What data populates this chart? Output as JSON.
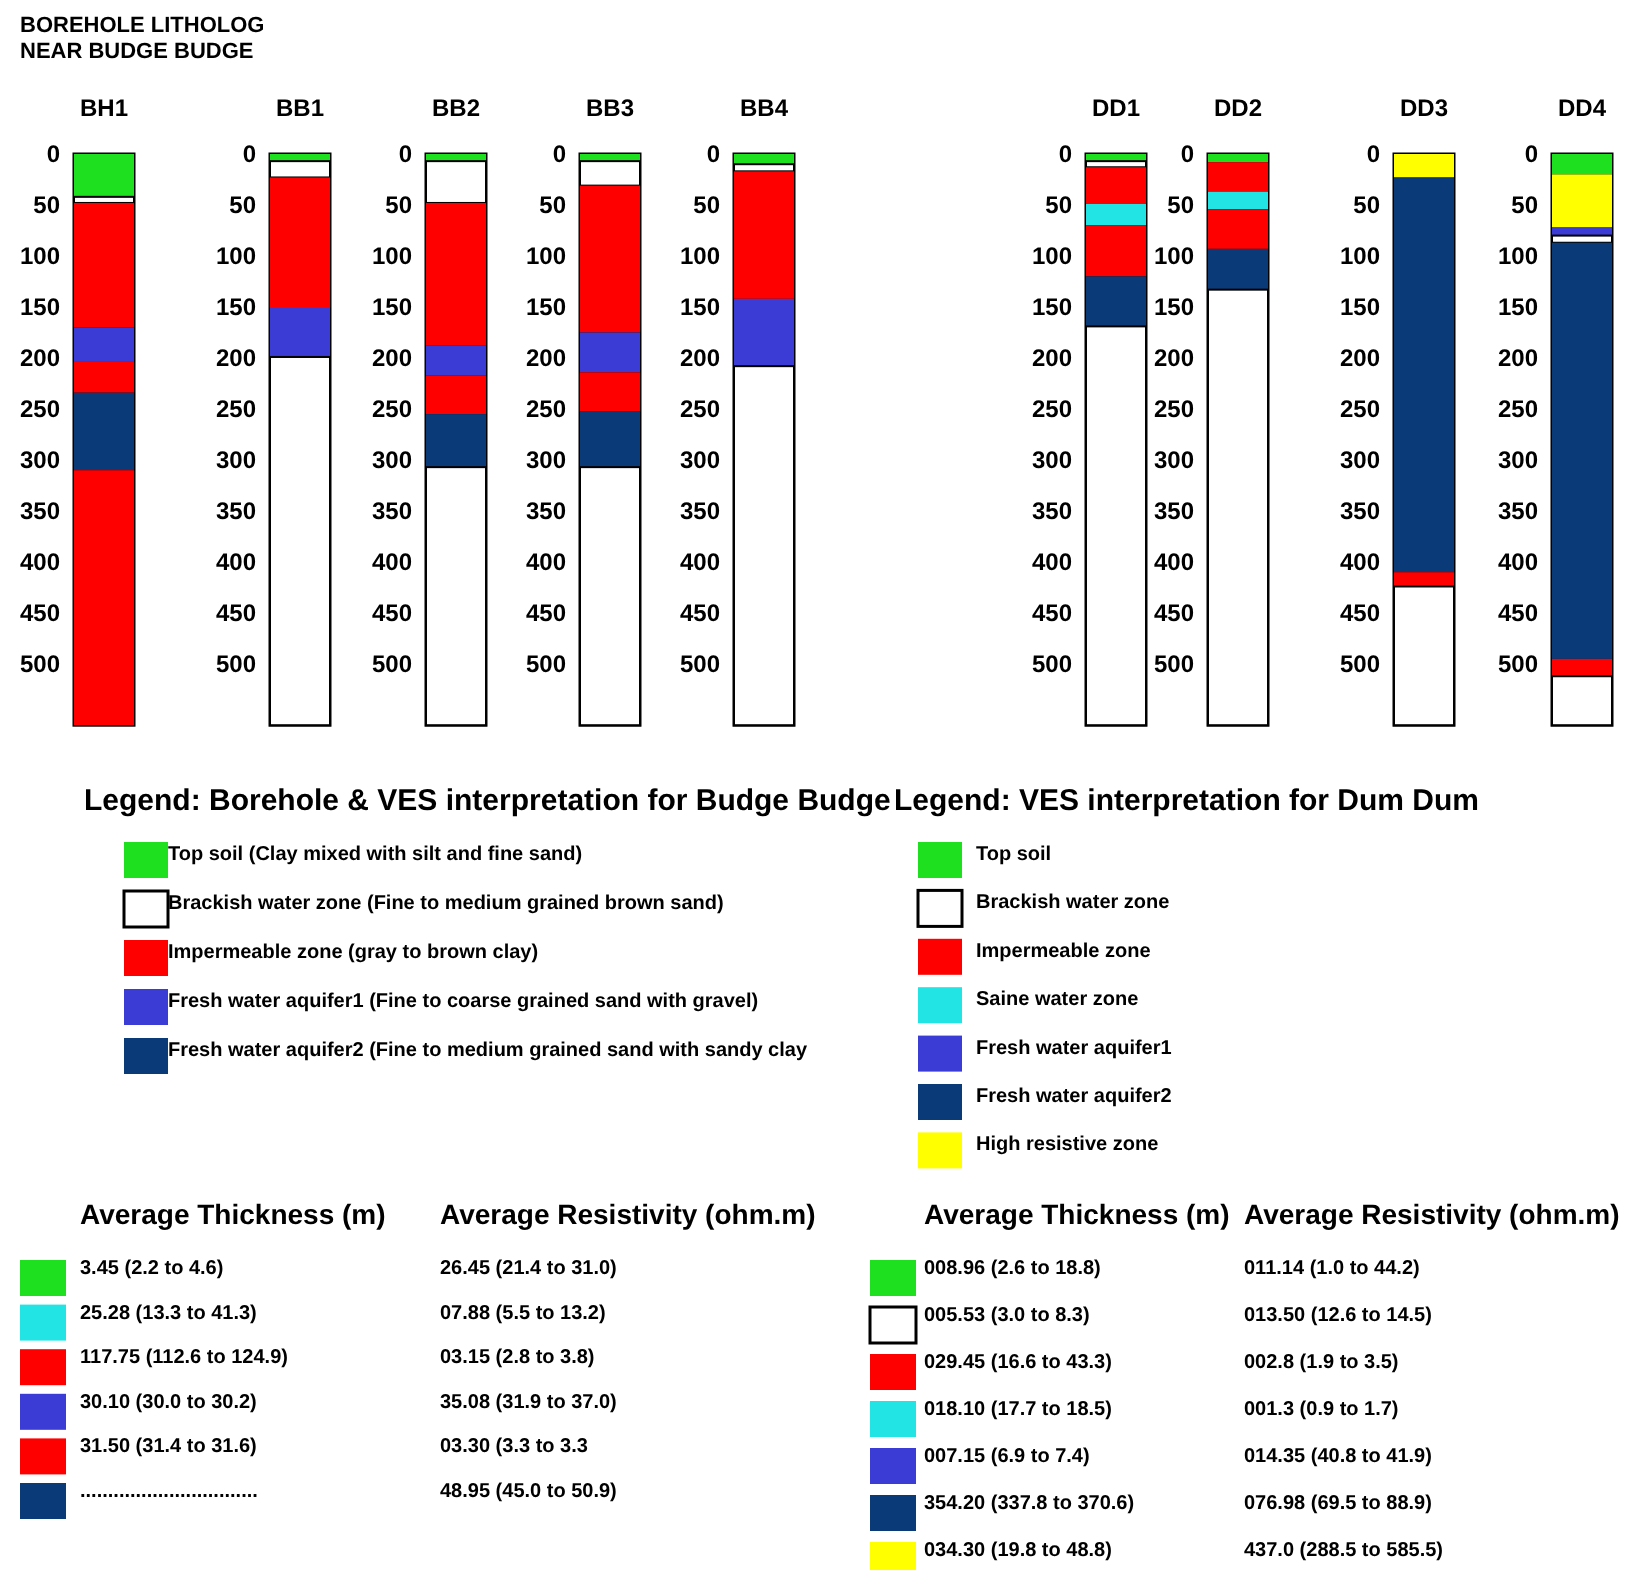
{
  "chart_data": [
    {
      "type": "bar",
      "title": "BOREHOLE LITHOLOG",
      "subtitle": "NEAR BUDGE BUDGE",
      "stacked": true,
      "categories": [
        "BH1"
      ],
      "ylim": [
        560,
        0
      ],
      "yticks": [
        0,
        50,
        100,
        150,
        200,
        250,
        300,
        350,
        400,
        450,
        500
      ],
      "series": [
        {
          "values": [
            42
          ],
          "color": "#1ee01e"
        },
        {
          "values": [
            6
          ],
          "color": "#ffffff"
        },
        {
          "values": [
            122
          ],
          "color": "#ff0000"
        },
        {
          "values": [
            33
          ],
          "color": "#3b3bd6"
        },
        {
          "values": [
            31
          ],
          "color": "#ff0000"
        },
        {
          "values": [
            76
          ],
          "color": "#0b3a78"
        },
        {
          "values": [
            250
          ],
          "color": "#ff0000"
        }
      ]
    },
    {
      "type": "bar",
      "stacked": true,
      "categories": [
        "BB1"
      ],
      "ylim": [
        560,
        0
      ],
      "yticks": [
        0,
        50,
        100,
        150,
        200,
        250,
        300,
        350,
        400,
        450,
        500
      ],
      "series": [
        {
          "values": [
            7
          ],
          "color": "#1ee01e"
        },
        {
          "values": [
            16
          ],
          "color": "#ffffff"
        },
        {
          "values": [
            127
          ],
          "color": "#ff0000"
        },
        {
          "values": [
            49
          ],
          "color": "#3b3bd6"
        },
        {
          "values": [
            361
          ],
          "color": "#ffffff"
        }
      ]
    },
    {
      "type": "bar",
      "stacked": true,
      "categories": [
        "BB2"
      ],
      "ylim": [
        560,
        0
      ],
      "yticks": [
        0,
        50,
        100,
        150,
        200,
        250,
        300,
        350,
        400,
        450,
        500
      ],
      "series": [
        {
          "values": [
            7
          ],
          "color": "#1ee01e"
        },
        {
          "values": [
            41
          ],
          "color": "#ffffff"
        },
        {
          "values": [
            140
          ],
          "color": "#ff0000"
        },
        {
          "values": [
            29
          ],
          "color": "#3b3bd6"
        },
        {
          "values": [
            38
          ],
          "color": "#ff0000"
        },
        {
          "values": [
            52
          ],
          "color": "#0b3a78"
        },
        {
          "values": [
            253
          ],
          "color": "#ffffff"
        }
      ]
    },
    {
      "type": "bar",
      "stacked": true,
      "categories": [
        "BB3"
      ],
      "ylim": [
        560,
        0
      ],
      "yticks": [
        0,
        50,
        100,
        150,
        200,
        250,
        300,
        350,
        400,
        450,
        500
      ],
      "series": [
        {
          "values": [
            7
          ],
          "color": "#1ee01e"
        },
        {
          "values": [
            24
          ],
          "color": "#ffffff"
        },
        {
          "values": [
            144
          ],
          "color": "#ff0000"
        },
        {
          "values": [
            39
          ],
          "color": "#3b3bd6"
        },
        {
          "values": [
            38
          ],
          "color": "#ff0000"
        },
        {
          "values": [
            55
          ],
          "color": "#0b3a78"
        },
        {
          "values": [
            253
          ],
          "color": "#ffffff"
        }
      ]
    },
    {
      "type": "bar",
      "stacked": true,
      "categories": [
        "BB4"
      ],
      "ylim": [
        560,
        0
      ],
      "yticks": [
        0,
        50,
        100,
        150,
        200,
        250,
        300,
        350,
        400,
        450,
        500
      ],
      "series": [
        {
          "values": [
            10
          ],
          "color": "#1ee01e"
        },
        {
          "values": [
            7
          ],
          "color": "#ffffff"
        },
        {
          "values": [
            125
          ],
          "color": "#ff0000"
        },
        {
          "values": [
            66
          ],
          "color": "#3b3bd6"
        },
        {
          "values": [
            352
          ],
          "color": "#ffffff"
        }
      ]
    },
    {
      "type": "bar",
      "stacked": true,
      "categories": [
        "DD1"
      ],
      "ylim": [
        560,
        0
      ],
      "yticks": [
        0,
        50,
        100,
        150,
        200,
        250,
        300,
        350,
        400,
        450,
        500
      ],
      "series": [
        {
          "values": [
            7
          ],
          "color": "#1ee01e"
        },
        {
          "values": [
            6
          ],
          "color": "#ffffff"
        },
        {
          "values": [
            36
          ],
          "color": "#ff0000"
        },
        {
          "values": [
            21
          ],
          "color": "#22e4e4"
        },
        {
          "values": [
            50
          ],
          "color": "#ff0000"
        },
        {
          "values": [
            49
          ],
          "color": "#0b3a78"
        },
        {
          "values": [
            391
          ],
          "color": "#ffffff"
        }
      ]
    },
    {
      "type": "bar",
      "stacked": true,
      "categories": [
        "DD2"
      ],
      "ylim": [
        560,
        0
      ],
      "yticks": [
        0,
        50,
        100,
        150,
        200,
        250,
        300,
        350,
        400,
        450,
        500
      ],
      "series": [
        {
          "values": [
            8
          ],
          "color": "#1ee01e"
        },
        {
          "values": [
            29
          ],
          "color": "#ff0000"
        },
        {
          "values": [
            17
          ],
          "color": "#22e4e4"
        },
        {
          "values": [
            39
          ],
          "color": "#ff0000"
        },
        {
          "values": [
            40
          ],
          "color": "#0b3a78"
        },
        {
          "values": [
            427
          ],
          "color": "#ffffff"
        }
      ]
    },
    {
      "type": "bar",
      "stacked": true,
      "categories": [
        "DD3"
      ],
      "ylim": [
        560,
        0
      ],
      "yticks": [
        0,
        50,
        100,
        150,
        200,
        250,
        300,
        350,
        400,
        450,
        500
      ],
      "series": [
        {
          "values": [
            23
          ],
          "color": "#ffff00"
        },
        {
          "values": [
            387
          ],
          "color": "#0b3a78"
        },
        {
          "values": [
            14
          ],
          "color": "#ff0000"
        },
        {
          "values": [
            136
          ],
          "color": "#ffffff"
        }
      ]
    },
    {
      "type": "bar",
      "stacked": true,
      "categories": [
        "DD4"
      ],
      "ylim": [
        560,
        0
      ],
      "yticks": [
        0,
        50,
        100,
        150,
        200,
        250,
        300,
        350,
        400,
        450,
        500
      ],
      "series": [
        {
          "values": [
            20
          ],
          "color": "#1ee01e"
        },
        {
          "values": [
            52
          ],
          "color": "#ffff00"
        },
        {
          "values": [
            8
          ],
          "color": "#3b3bd6"
        },
        {
          "values": [
            7
          ],
          "color": "#ffffff"
        },
        {
          "values": [
            408
          ],
          "color": "#0b3a78"
        },
        {
          "values": [
            17
          ],
          "color": "#ff0000"
        },
        {
          "values": [
            48
          ],
          "color": "#ffffff"
        }
      ]
    },
    {
      "type": "other",
      "title": "Legend: Borehole & VES interpretation for Budge Budge",
      "categories": [
        "Top soil (Clay mixed with silt and fine sand)",
        "Brackish water zone (Fine to medium grained brown sand)",
        "Impermeable zone (gray to brown clay)",
        "Fresh water aquifer1 (Fine to coarse grained sand with gravel)",
        "Fresh water aquifer2 (Fine to medium grained sand with sandy clay"
      ],
      "colors": [
        "#1ee01e",
        "#ffffff",
        "#ff0000",
        "#3b3bd6",
        "#0b3a78"
      ]
    },
    {
      "type": "other",
      "title": "Legend: VES interpretation for Dum Dum",
      "categories": [
        "Top soil",
        "Brackish water zone",
        "Impermeable zone",
        "Saine water zone",
        "Fresh water aquifer1",
        "Fresh water aquifer2",
        "High resistive zone"
      ],
      "colors": [
        "#1ee01e",
        "#ffffff",
        "#ff0000",
        "#22e4e4",
        "#3b3bd6",
        "#0b3a78",
        "#ffff00"
      ]
    },
    {
      "type": "other",
      "categories": [
        "Average Thickness (m)",
        "Average Resistivity (ohm.m)"
      ],
      "colors": [
        "#1ee01e",
        "#22e4e4",
        "#ff0000",
        "#3b3bd6",
        "#ff0000",
        "#0b3a78"
      ],
      "cell_labels": [
        [
          "3.45 (2.2 to 4.6)",
          "26.45 (21.4 to 31.0)"
        ],
        [
          "25.28 (13.3 to 41.3)",
          "07.88 (5.5 to 13.2)"
        ],
        [
          "117.75 (112.6 to 124.9)",
          "03.15 (2.8 to 3.8)"
        ],
        [
          "30.10 (30.0 to 30.2)",
          "35.08 (31.9 to 37.0)"
        ],
        [
          "31.50 (31.4 to 31.6)",
          "03.30 (3.3 to 3.3"
        ],
        [
          "................................",
          "48.95 (45.0 to 50.9)"
        ]
      ]
    },
    {
      "type": "other",
      "categories": [
        "Average Thickness (m)",
        "Average Resistivity (ohm.m)"
      ],
      "colors": [
        "#1ee01e",
        "#ffffff",
        "#ff0000",
        "#22e4e4",
        "#3b3bd6",
        "#0b3a78",
        "#ffff00"
      ],
      "cell_labels": [
        [
          "008.96 (2.6 to 18.8)",
          "011.14 (1.0 to 44.2)"
        ],
        [
          "005.53 (3.0 to 8.3)",
          "013.50 (12.6 to 14.5)"
        ],
        [
          "029.45 (16.6 to 43.3)",
          "002.8 (1.9 to 3.5)"
        ],
        [
          "018.10 (17.7 to 18.5)",
          "001.3 (0.9 to 1.7)"
        ],
        [
          "007.15 (6.9 to 7.4)",
          "014.35 (40.8 to 41.9)"
        ],
        [
          "354.20 (337.8 to 370.6)",
          "076.98 (69.5 to 88.9)"
        ],
        [
          "034.30 (19.8 to 48.8)",
          "437.0 (288.5 to 585.5)"
        ]
      ]
    }
  ]
}
